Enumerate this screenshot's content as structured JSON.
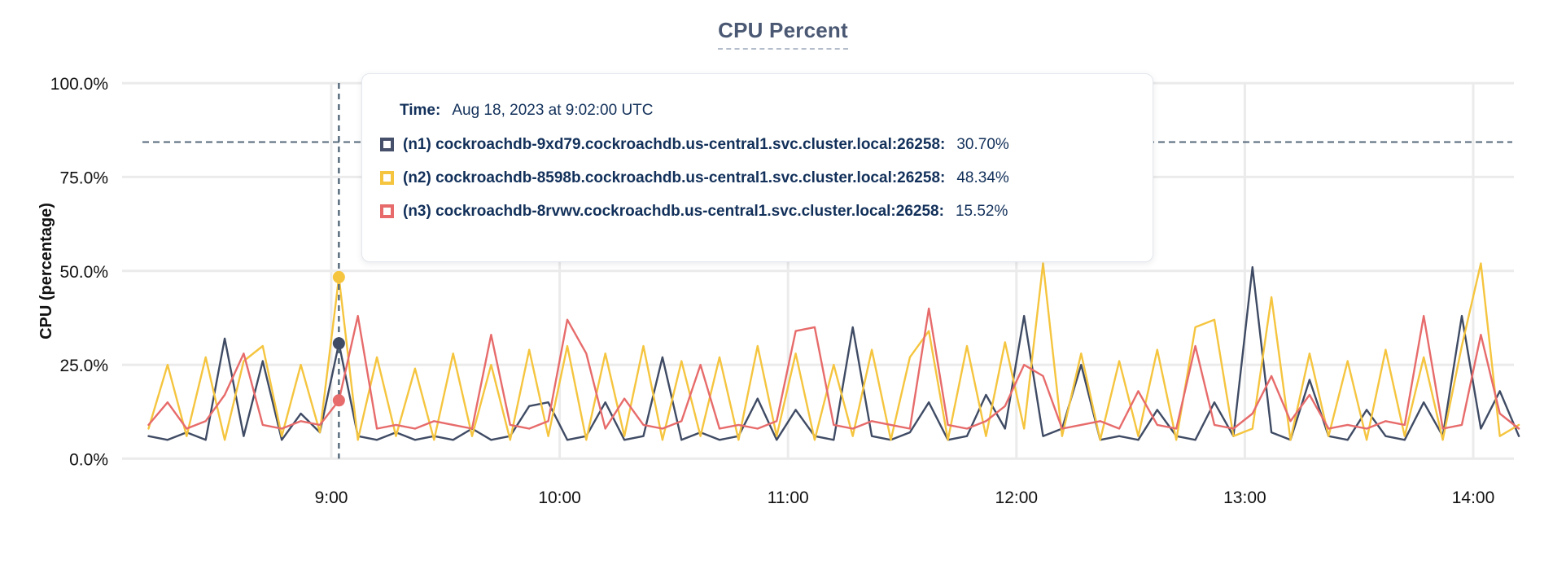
{
  "title": "CPU Percent",
  "tooltip": {
    "time_label": "Time:",
    "time_value": "Aug 18, 2023 at 9:02:00 UTC",
    "rows": [
      {
        "label": "(n1) cockroachdb-9xd79.cockroachdb.us-central1.svc.cluster.local:26258:",
        "value": "30.70%",
        "color": "#46506a"
      },
      {
        "label": "(n2) cockroachdb-8598b.cockroachdb.us-central1.svc.cluster.local:26258:",
        "value": "48.34%",
        "color": "#f5c53f"
      },
      {
        "label": "(n3) cockroachdb-8rvwv.cockroachdb.us-central1.svc.cluster.local:26258:",
        "value": "15.52%",
        "color": "#e76b6b"
      }
    ]
  },
  "chart_data": {
    "type": "line",
    "title": "CPU Percent",
    "ylabel": "CPU (percentage)",
    "ylim": [
      0,
      100
    ],
    "grid": true,
    "y_axis": {
      "title": "CPU (percentage)",
      "tick_values": [
        100,
        75,
        50,
        25,
        0
      ],
      "tick_labels": [
        "100.0%",
        "75.0%",
        "50.0%",
        "25.0%",
        "0.0%"
      ]
    },
    "x_axis": {
      "tick_labels": [
        "9:00",
        "10:00",
        "11:00",
        "12:00",
        "13:00",
        "14:00"
      ],
      "tick_minutes_from_9": [
        0,
        60,
        120,
        180,
        240,
        300
      ]
    },
    "x_start_time": "8:12",
    "x_step_minutes": 5,
    "x_end_time": "14:12",
    "threshold_line_percent": 84.3,
    "hover": {
      "time": "9:02",
      "minutes_from_9": 2,
      "values": [
        30.7,
        48.34,
        15.52
      ]
    },
    "series": [
      {
        "name": "(n1) cockroachdb-9xd79.cockroachdb.us-central1.svc.cluster.local:26258",
        "color": "#3f4b64",
        "values": [
          6,
          5,
          7,
          5,
          32,
          6,
          26,
          5,
          12,
          7,
          30.7,
          6,
          5,
          7,
          5,
          6,
          5,
          8,
          5,
          6,
          14,
          15,
          5,
          6,
          15,
          5,
          6,
          27,
          5,
          7,
          5,
          6,
          16,
          5,
          13,
          6,
          5,
          35,
          6,
          5,
          7,
          15,
          5,
          6,
          17,
          8,
          38,
          6,
          8,
          25,
          5,
          6,
          5,
          13,
          6,
          5,
          15,
          6,
          51,
          7,
          5,
          21,
          6,
          5,
          13,
          6,
          5,
          15,
          6,
          38,
          8,
          18,
          6
        ]
      },
      {
        "name": "(n2) cockroachdb-8598b.cockroachdb.us-central1.svc.cluster.local:26258",
        "color": "#f5c53f",
        "values": [
          8,
          25,
          6,
          27,
          5,
          26,
          30,
          6,
          25,
          7,
          48.3,
          5,
          27,
          6,
          24,
          5,
          28,
          6,
          25,
          5,
          29,
          6,
          30,
          5,
          28,
          6,
          30,
          5,
          26,
          6,
          27,
          5,
          30,
          6,
          28,
          5,
          25,
          6,
          29,
          5,
          27,
          34,
          5,
          30,
          6,
          31,
          8,
          52,
          6,
          28,
          5,
          26,
          6,
          29,
          5,
          35,
          37,
          6,
          8,
          43,
          5,
          28,
          6,
          26,
          5,
          29,
          6,
          27,
          5,
          30,
          52,
          6,
          9
        ]
      },
      {
        "name": "(n3) cockroachdb-8rvwv.cockroachdb.us-central1.svc.cluster.local:26258",
        "color": "#e76b6b",
        "values": [
          9,
          15,
          8,
          10,
          17,
          28,
          9,
          8,
          10,
          9,
          15.5,
          38,
          8,
          9,
          8,
          10,
          9,
          8,
          33,
          9,
          8,
          10,
          37,
          28,
          8,
          16,
          9,
          8,
          10,
          25,
          8,
          9,
          8,
          10,
          34,
          35,
          9,
          8,
          10,
          9,
          8,
          40,
          9,
          8,
          10,
          14,
          25,
          22,
          8,
          9,
          10,
          8,
          18,
          9,
          8,
          30,
          9,
          8,
          12,
          22,
          10,
          17,
          8,
          9,
          8,
          10,
          9,
          38,
          8,
          9,
          33,
          12,
          8
        ]
      }
    ],
    "colors": {
      "grid": "#ebebeb",
      "axis_text": "#111111",
      "dashed_guides": "#54687a",
      "title": "#4a5873",
      "tooltip_text": "#12305a"
    }
  }
}
